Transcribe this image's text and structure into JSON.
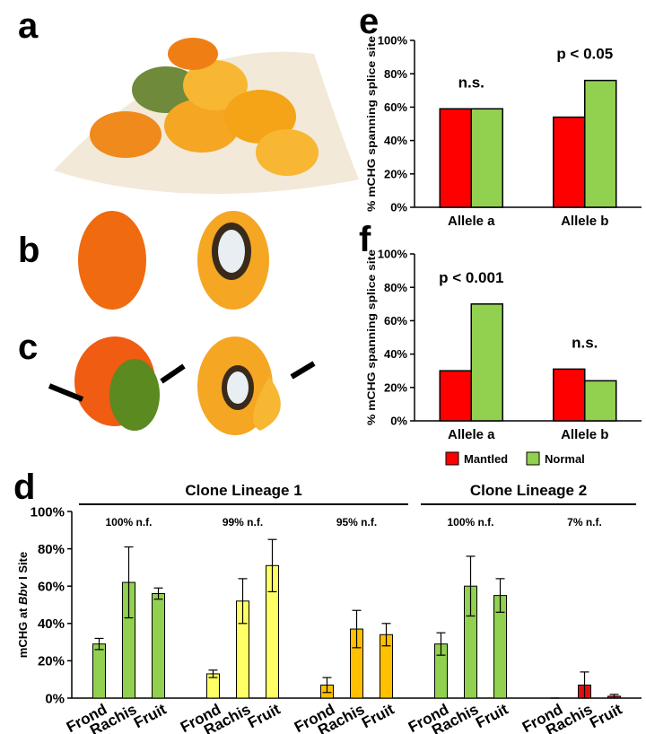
{
  "panel_labels": [
    "a",
    "b",
    "c",
    "d",
    "e",
    "f"
  ],
  "chart_data": [
    {
      "type": "bar",
      "y_label": "% mCHG spanning splice site",
      "categories": [
        "Allele a",
        "Allele b"
      ],
      "annotations": [
        "n.s.",
        "p < 0.05"
      ],
      "series": [
        {
          "color": "#ff0000",
          "values": [
            59,
            54
          ]
        },
        {
          "color": "#92d050",
          "values": [
            59,
            76
          ]
        }
      ],
      "ylim": [
        0,
        100
      ],
      "yticks": [
        {
          "value": 0,
          "label": "0%"
        },
        {
          "value": 20,
          "label": "20%"
        },
        {
          "value": 40,
          "label": "40%"
        },
        {
          "value": 60,
          "label": "60%"
        },
        {
          "value": 80,
          "label": "80%"
        },
        {
          "value": 100,
          "label": "100%"
        }
      ]
    },
    {
      "type": "bar",
      "y_label": "% mCHG spanning splice site",
      "categories": [
        "Allele a",
        "Allele b"
      ],
      "annotations": [
        "p < 0.001",
        "n.s."
      ],
      "series": [
        {
          "name": "Mantled",
          "color": "#ff0000",
          "values": [
            30,
            31
          ]
        },
        {
          "name": "Normal",
          "color": "#92d050",
          "values": [
            70,
            24
          ]
        }
      ],
      "ylim": [
        0,
        100
      ],
      "yticks": [
        {
          "value": 0,
          "label": "0%"
        },
        {
          "value": 20,
          "label": "20%"
        },
        {
          "value": 40,
          "label": "40%"
        },
        {
          "value": 60,
          "label": "60%"
        },
        {
          "value": 80,
          "label": "80%"
        },
        {
          "value": 100,
          "label": "100%"
        }
      ]
    },
    {
      "type": "errorbar",
      "y_label_parts": [
        "mCHG at ",
        "Bbv",
        " I Site"
      ],
      "categories": [
        "Frond",
        "Rachis",
        "Fruit"
      ],
      "lineages": [
        {
          "name": "Clone Lineage 1",
          "samples": [
            {
              "label": "100% n.f.",
              "color": "#92d050",
              "values": [
                29,
                62,
                56
              ],
              "errors": [
                3,
                19,
                3
              ]
            },
            {
              "label": "99% n.f.",
              "color": "#ffff66",
              "values": [
                13,
                52,
                71
              ],
              "errors": [
                2,
                12,
                14
              ]
            },
            {
              "label": "95% n.f.",
              "color": "#ffc000",
              "values": [
                7,
                37,
                34
              ],
              "errors": [
                4,
                10,
                6
              ]
            }
          ]
        },
        {
          "name": "Clone Lineage 2",
          "samples": [
            {
              "label": "100% n.f.",
              "color": "#92d050",
              "values": [
                29,
                60,
                55
              ],
              "errors": [
                6,
                16,
                9
              ]
            },
            {
              "label": "7% n.f.",
              "color": "#e01010",
              "values": [
                0,
                7,
                1
              ],
              "errors": [
                0,
                7,
                1
              ]
            }
          ]
        }
      ],
      "ylim": [
        0,
        100
      ],
      "yticks": [
        {
          "value": 0,
          "label": "0%"
        },
        {
          "value": 20,
          "label": "20%"
        },
        {
          "value": 40,
          "label": "40%"
        },
        {
          "value": 60,
          "label": "60%"
        },
        {
          "value": 80,
          "label": "80%"
        },
        {
          "value": 100,
          "label": "100%"
        }
      ]
    }
  ]
}
